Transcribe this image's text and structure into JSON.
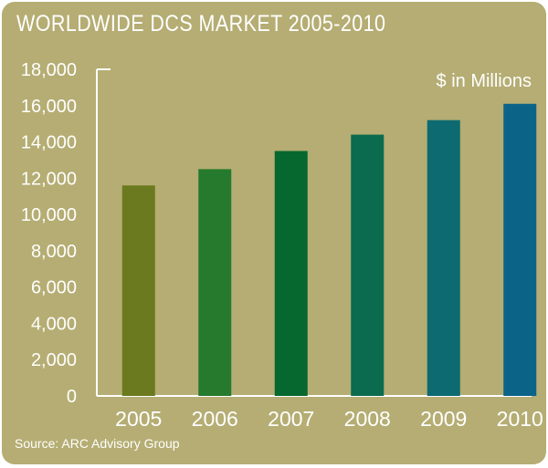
{
  "header": {
    "title": "WORLDWIDE DCS MARKET 2005-2010",
    "unit_label": "$ in Millions"
  },
  "footer": {
    "source": "Source: ARC Advisory Group"
  },
  "colors": {
    "background": "#b5ad73",
    "text": "#ffffff",
    "bars": [
      "#6b7a1e",
      "#267a2d",
      "#06682e",
      "#0a6b4f",
      "#0c6a70",
      "#0b6488"
    ]
  },
  "chart_data": {
    "type": "bar",
    "title": "WORLDWIDE DCS MARKET 2005-2010",
    "xlabel": "",
    "ylabel": "$ in Millions",
    "categories": [
      "2005",
      "2006",
      "2007",
      "2008",
      "2009",
      "2010"
    ],
    "values": [
      11600,
      12500,
      13500,
      14400,
      15200,
      16100
    ],
    "ylim": [
      0,
      18000
    ],
    "yticks": [
      0,
      2000,
      4000,
      6000,
      8000,
      10000,
      12000,
      14000,
      16000,
      18000
    ],
    "ytick_labels": [
      "0",
      "2,000",
      "4,000",
      "6,000",
      "8,000",
      "10,000",
      "12,000",
      "14,000",
      "16,000",
      "18,000"
    ],
    "grid": false,
    "legend": "none"
  }
}
